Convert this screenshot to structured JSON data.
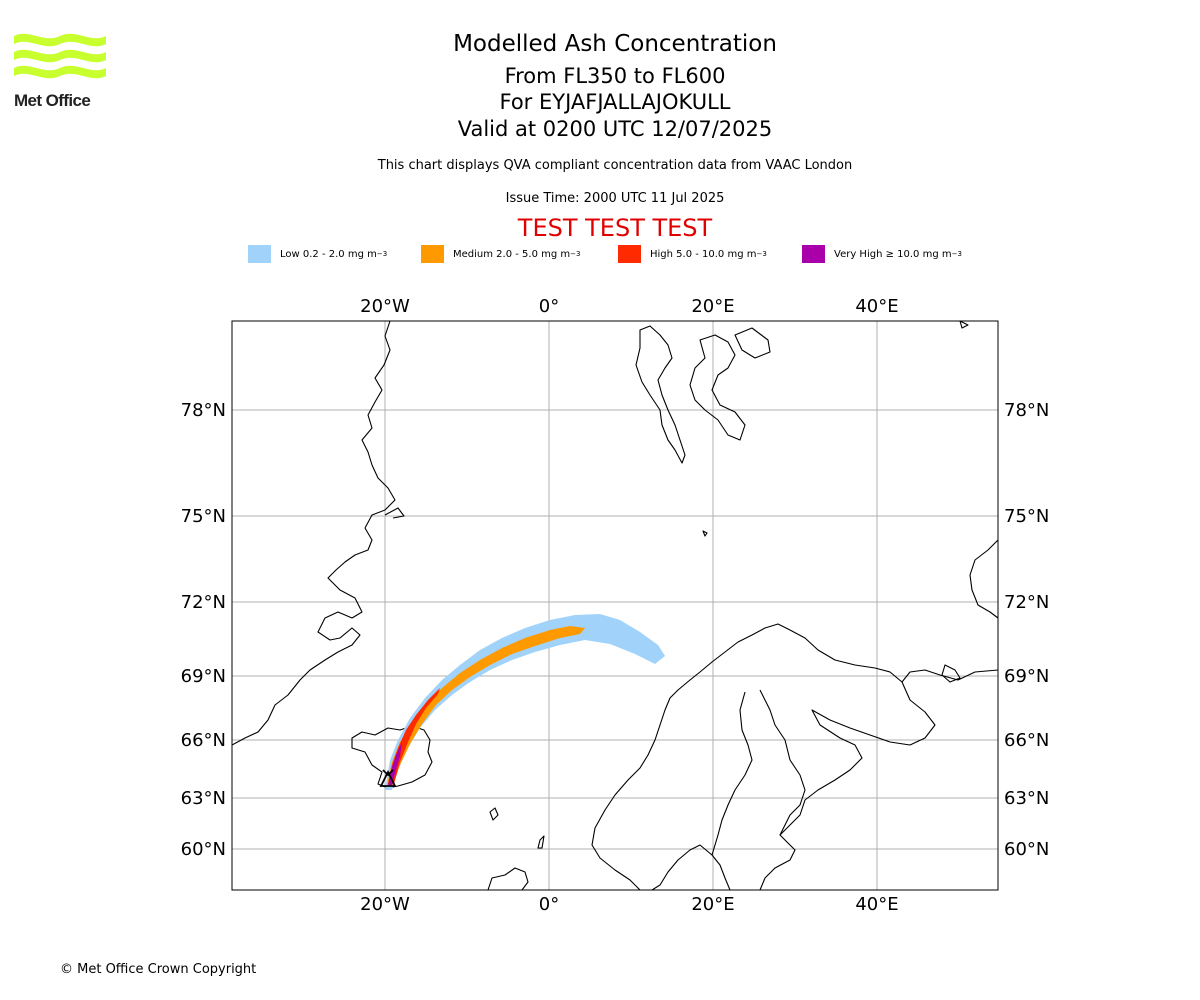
{
  "logo": {
    "text": "Met Office"
  },
  "header": {
    "title": "Modelled Ash Concentration",
    "level": "From FL350 to FL600",
    "volcano": "For EYJAFJALLAJOKULL",
    "valid": "Valid at 0200 UTC 12/07/2025",
    "description": "This chart displays QVA compliant concentration data from VAAC London",
    "issue_time": "Issue Time: 2000 UTC 11 Jul 2025",
    "test_banner": "TEST TEST TEST"
  },
  "legend": [
    {
      "label": "Low 0.2 - 2.0 mg m",
      "unit_exp": "−3",
      "color": "#a0d2fa"
    },
    {
      "label": "Medium 2.0 - 5.0 mg m",
      "unit_exp": "−3",
      "color": "#ff9900"
    },
    {
      "label": "High 5.0 - 10.0 mg m",
      "unit_exp": "−3",
      "color": "#ff2a00"
    },
    {
      "label": "Very High  ≥  10.0 mg m",
      "unit_exp": "−3",
      "color": "#aa00aa"
    }
  ],
  "map": {
    "lon_labels_top": [
      "20°W",
      "0°",
      "20°E",
      "40°E"
    ],
    "lon_labels_bottom": [
      "20°W",
      "0°",
      "20°E",
      "40°E"
    ],
    "lat_labels_left": [
      "78°N",
      "75°N",
      "72°N",
      "69°N",
      "66°N",
      "63°N",
      "60°N"
    ],
    "lat_labels_right": [
      "78°N",
      "75°N",
      "72°N",
      "69°N",
      "66°N",
      "63°N",
      "60°N"
    ],
    "volcano_marker": "volcano-triangle-icon",
    "coast_color": "#000000",
    "grid_color": "#b0b0b0"
  },
  "footer": {
    "copyright": "© Met Office Crown Copyright"
  }
}
